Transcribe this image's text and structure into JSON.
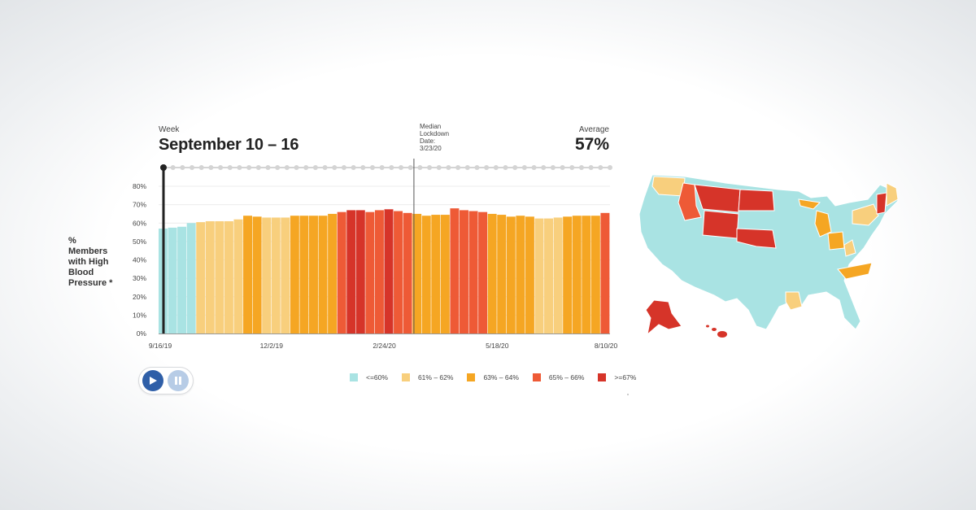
{
  "header": {
    "week_label": "Week",
    "week_value": "September 10 – 16",
    "average_label": "Average",
    "average_value": "57%"
  },
  "lockdown_note": [
    "Median",
    "Lockdown",
    "Date:",
    "3/23/20"
  ],
  "y_axis_label": [
    "%",
    "Members",
    "with High",
    "Blood",
    "Pressure *"
  ],
  "controls": {
    "play_icon": "play-icon",
    "pause_icon": "pause-icon"
  },
  "colors": {
    "c1": "#a9e3e3",
    "c2": "#f8cf7d",
    "c3": "#f5a623",
    "c4": "#ee5a36",
    "c5": "#d63429"
  },
  "chart_data": {
    "type": "bar",
    "ylim": [
      0,
      80
    ],
    "yticks": [
      "0%",
      "10%",
      "20%",
      "30%",
      "40%",
      "50%",
      "60%",
      "70%",
      "80%"
    ],
    "x_tick_labels": [
      "9/16/19",
      "12/2/19",
      "2/24/20",
      "5/18/20",
      "8/10/20"
    ],
    "values": [
      57,
      57.5,
      58,
      60,
      60.5,
      61,
      61,
      61,
      62,
      64,
      63.5,
      63,
      63,
      63,
      64,
      64,
      64,
      64,
      65,
      66,
      67,
      67,
      66,
      67,
      67.5,
      66.5,
      65.5,
      65,
      64,
      64.5,
      64.5,
      68,
      67,
      66.5,
      66,
      65,
      64.5,
      63.5,
      64,
      63.5,
      62.5,
      62.5,
      63,
      63.5,
      64,
      64,
      64,
      65.5
    ],
    "color_class": [
      1,
      1,
      1,
      1,
      2,
      2,
      2,
      2,
      2,
      3,
      3,
      2,
      2,
      2,
      3,
      3,
      3,
      3,
      3,
      4,
      5,
      5,
      4,
      4,
      5,
      4,
      4,
      3,
      3,
      3,
      3,
      4,
      4,
      4,
      4,
      3,
      3,
      3,
      3,
      3,
      2,
      2,
      2,
      3,
      3,
      3,
      3,
      4
    ],
    "highlight_index": 0,
    "lockdown_index": 27,
    "grid": true,
    "legend_position": "bottom-right",
    "legend": [
      {
        "label": "<=60%",
        "color": "#a9e3e3"
      },
      {
        "label": "61% – 62%",
        "color": "#f8cf7d"
      },
      {
        "label": "63% – 64%",
        "color": "#f5a623"
      },
      {
        "label": "65% – 66%",
        "color": "#ee5a36"
      },
      {
        "label": ">=67%",
        "color": "#d63429"
      }
    ]
  },
  "map": {
    "description_colors": {
      "mainland": "#a9e3e3",
      "alaska": "#d63429",
      "hawaii": "#d63429"
    }
  }
}
